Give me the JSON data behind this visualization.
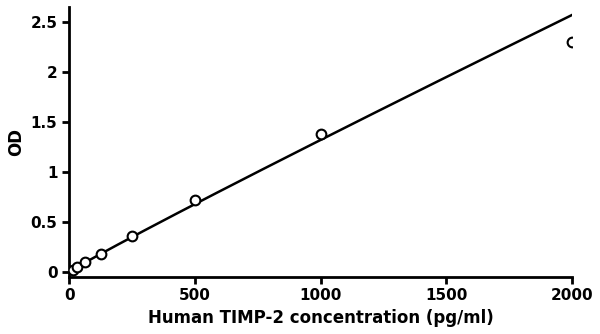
{
  "x_data": [
    15.6,
    31.2,
    62.5,
    125,
    250,
    500,
    1000,
    2000
  ],
  "y_data": [
    0.022,
    0.048,
    0.098,
    0.175,
    0.355,
    0.72,
    1.38,
    2.3
  ],
  "xlabel": "Human TIMP-2 concentration (pg/ml)",
  "ylabel": "OD",
  "xlim": [
    0,
    2000
  ],
  "ylim": [
    -0.05,
    2.65
  ],
  "xticks": [
    0,
    500,
    1000,
    1500,
    2000
  ],
  "yticks": [
    0,
    0.5,
    1.0,
    1.5,
    2.0,
    2.5
  ],
  "ytick_labels": [
    "0",
    "0.5",
    "1",
    "1.5",
    "2",
    "2.5"
  ],
  "line_color": "#000000",
  "marker_color": "#ffffff",
  "marker_edge_color": "#000000",
  "marker_size": 7,
  "line_width": 1.8,
  "background_color": "#ffffff",
  "xlabel_fontsize": 12,
  "ylabel_fontsize": 12,
  "tick_fontsize": 11,
  "xlabel_fontweight": "bold",
  "ylabel_fontweight": "bold"
}
